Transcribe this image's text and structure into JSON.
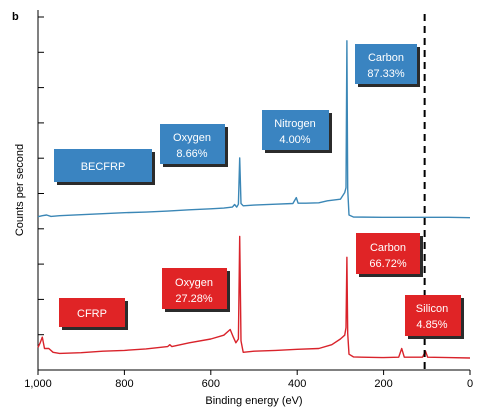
{
  "panel_label": "b",
  "chart_data": {
    "type": "line",
    "xlabel": "Binding energy (eV)",
    "ylabel": "Counts per second",
    "xlim": [
      1000,
      0
    ],
    "x_reversed": true,
    "xticks": [
      1000,
      800,
      600,
      400,
      200,
      0
    ],
    "xtick_labels": [
      "1,000",
      "800",
      "600",
      "400",
      "200",
      "0"
    ],
    "grid": false,
    "y_tick_count": 10,
    "reference_line": {
      "x": 105,
      "style": "dashed",
      "color": "#000000"
    },
    "series": [
      {
        "name": "BECFRP",
        "color": "#3b87b6",
        "points": [
          [
            1000,
            0.07
          ],
          [
            990,
            0.1
          ],
          [
            980,
            0.12
          ],
          [
            970,
            0.08
          ],
          [
            950,
            0.1
          ],
          [
            900,
            0.13
          ],
          [
            850,
            0.16
          ],
          [
            800,
            0.19
          ],
          [
            750,
            0.21
          ],
          [
            700,
            0.24
          ],
          [
            650,
            0.28
          ],
          [
            600,
            0.31
          ],
          [
            570,
            0.33
          ],
          [
            550,
            0.36
          ],
          [
            545,
            0.44
          ],
          [
            540,
            0.36
          ],
          [
            536,
            0.45
          ],
          [
            533,
            1.85
          ],
          [
            530,
            0.47
          ],
          [
            525,
            0.4
          ],
          [
            500,
            0.42
          ],
          [
            450,
            0.45
          ],
          [
            410,
            0.47
          ],
          [
            402,
            0.65
          ],
          [
            398,
            0.48
          ],
          [
            380,
            0.48
          ],
          [
            350,
            0.49
          ],
          [
            330,
            0.55
          ],
          [
            300,
            0.6
          ],
          [
            290,
            0.8
          ],
          [
            287,
            0.95
          ],
          [
            285,
            5.4
          ],
          [
            283,
            0.9
          ],
          [
            280,
            0.12
          ],
          [
            270,
            0.06
          ],
          [
            200,
            0.05
          ],
          [
            150,
            0.05
          ],
          [
            100,
            0.05
          ],
          [
            50,
            0.05
          ],
          [
            0,
            0.04
          ]
        ],
        "annotations": [
          {
            "label": "BECFRP"
          },
          {
            "element": "Oxygen",
            "value": "8.66%"
          },
          {
            "element": "Nitrogen",
            "value": "4.00%"
          },
          {
            "element": "Carbon",
            "value": "87.33%"
          }
        ]
      },
      {
        "name": "CFRP",
        "color": "#d9232b",
        "points": [
          [
            1000,
            0.28
          ],
          [
            995,
            0.4
          ],
          [
            990,
            0.55
          ],
          [
            985,
            0.25
          ],
          [
            975,
            0.25
          ],
          [
            965,
            0.15
          ],
          [
            950,
            0.12
          ],
          [
            900,
            0.14
          ],
          [
            850,
            0.18
          ],
          [
            800,
            0.2
          ],
          [
            750,
            0.24
          ],
          [
            700,
            0.3
          ],
          [
            695,
            0.35
          ],
          [
            690,
            0.3
          ],
          [
            650,
            0.4
          ],
          [
            600,
            0.5
          ],
          [
            570,
            0.6
          ],
          [
            555,
            0.75
          ],
          [
            548,
            0.55
          ],
          [
            542,
            0.4
          ],
          [
            536,
            0.5
          ],
          [
            533,
            3.2
          ],
          [
            530,
            0.45
          ],
          [
            525,
            0.15
          ],
          [
            500,
            0.18
          ],
          [
            450,
            0.2
          ],
          [
            400,
            0.23
          ],
          [
            350,
            0.25
          ],
          [
            320,
            0.35
          ],
          [
            300,
            0.5
          ],
          [
            290,
            0.6
          ],
          [
            287,
            0.8
          ],
          [
            285,
            2.65
          ],
          [
            283,
            0.65
          ],
          [
            280,
            0.1
          ],
          [
            270,
            0.03
          ],
          [
            250,
            0.02
          ],
          [
            200,
            0.01
          ],
          [
            165,
            0.02
          ],
          [
            158,
            0.25
          ],
          [
            152,
            0.02
          ],
          [
            110,
            0.02
          ],
          [
            103,
            0.18
          ],
          [
            98,
            0.02
          ],
          [
            50,
            0.01
          ],
          [
            0,
            0.0
          ]
        ],
        "annotations": [
          {
            "label": "CFRP"
          },
          {
            "element": "Oxygen",
            "value": "27.28%"
          },
          {
            "element": "Carbon",
            "value": "66.72%"
          },
          {
            "element": "Silicon",
            "value": "4.85%"
          }
        ]
      }
    ]
  },
  "callouts": {
    "becfrp_name": "BECFRP",
    "becfrp_oxygen": {
      "element": "Oxygen",
      "value": "8.66%"
    },
    "becfrp_nitrogen": {
      "element": "Nitrogen",
      "value": "4.00%"
    },
    "becfrp_carbon": {
      "element": "Carbon",
      "value": "87.33%"
    },
    "cfrp_name": "CFRP",
    "cfrp_oxygen": {
      "element": "Oxygen",
      "value": "27.28%"
    },
    "cfrp_carbon": {
      "element": "Carbon",
      "value": "66.72%"
    },
    "cfrp_silicon": {
      "element": "Silicon",
      "value": "4.85%"
    }
  },
  "colors": {
    "blue_box": "#3a84c1",
    "red_box": "#e02426"
  }
}
